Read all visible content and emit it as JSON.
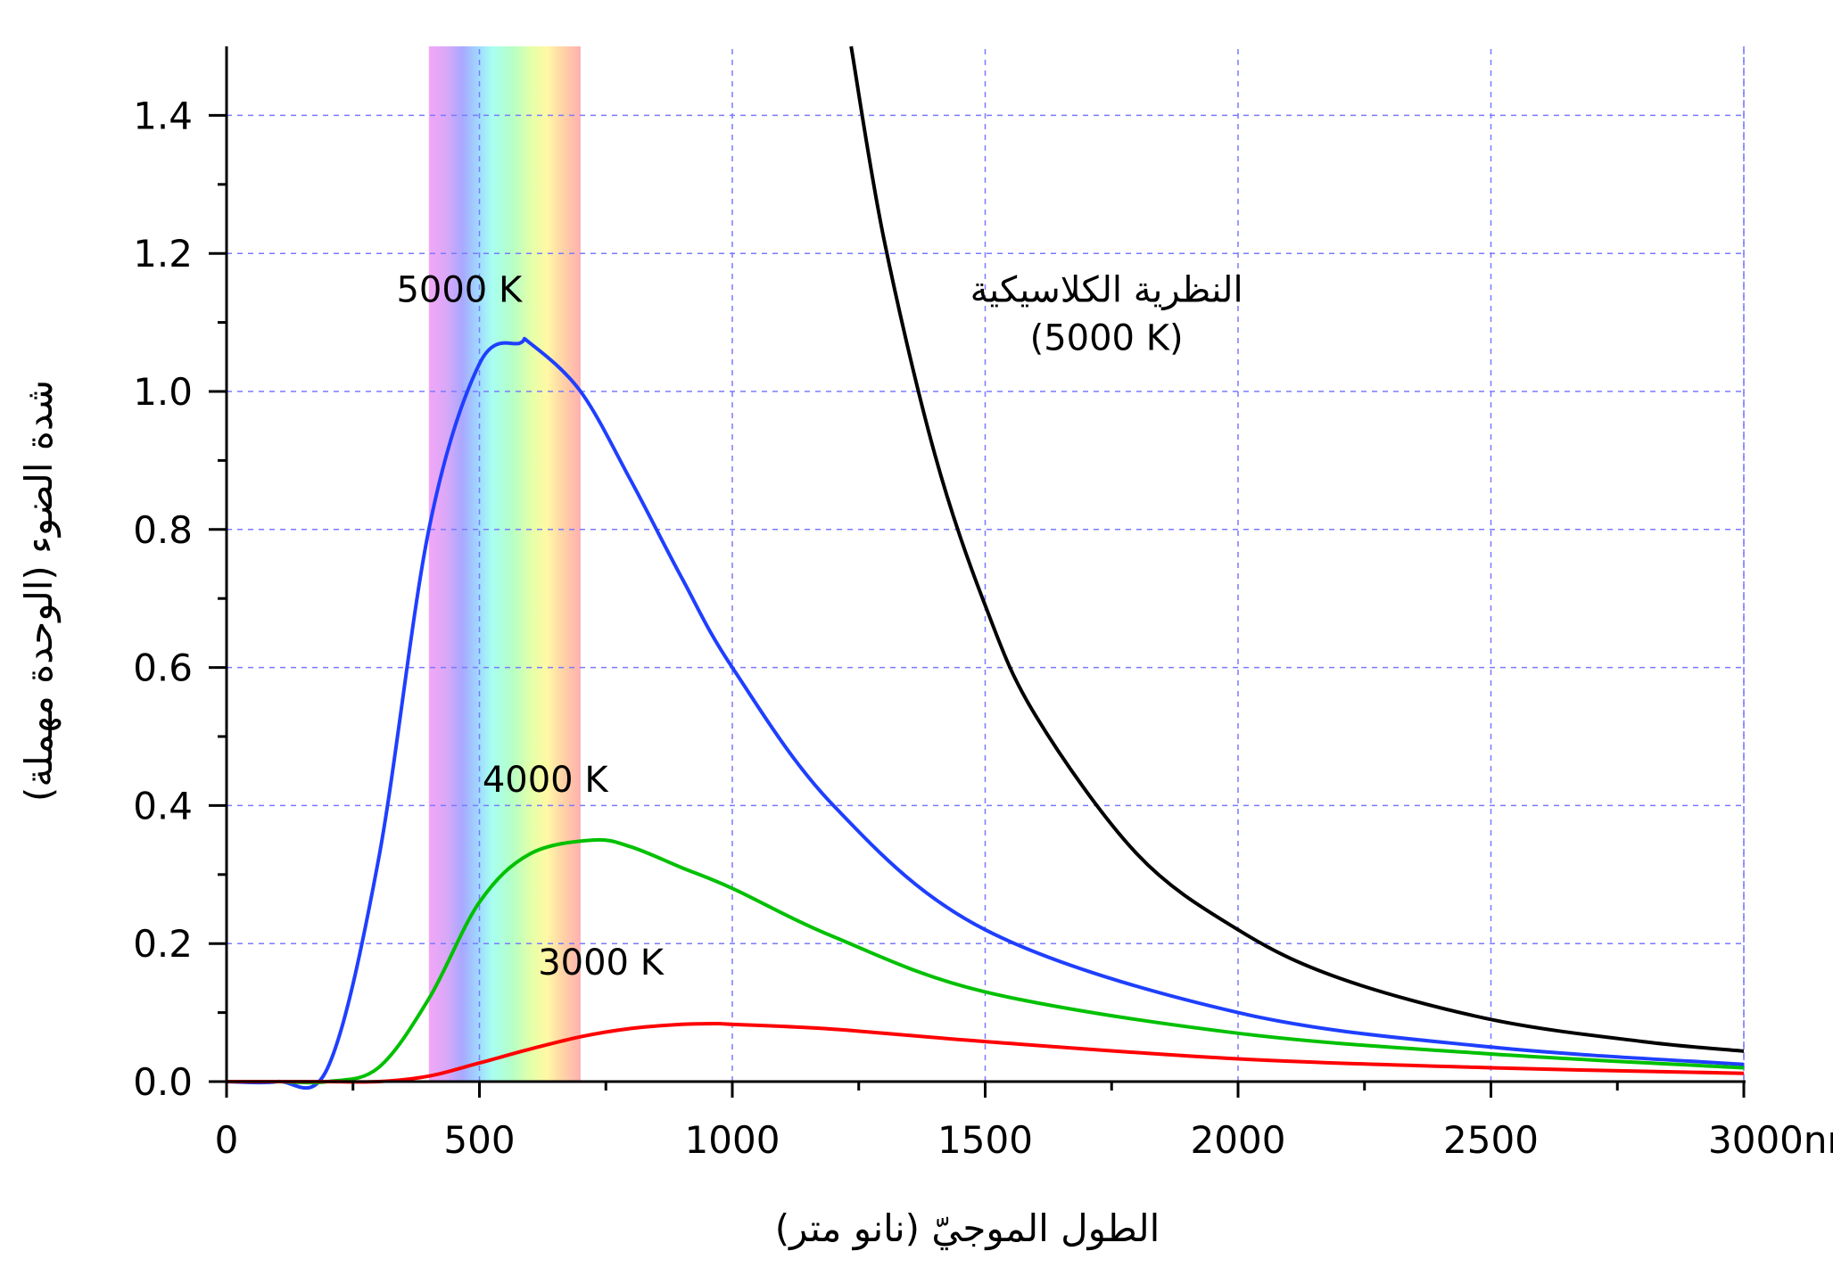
{
  "chart_data": {
    "type": "line",
    "xlabel": "الطول الموجيّ (نانو متر)",
    "ylabel": "شدة الضوء (الوحدة مهملة)",
    "xlim": [
      0,
      3000
    ],
    "ylim": [
      0,
      1.5
    ],
    "x_ticks": [
      "0",
      "500",
      "1000",
      "1500",
      "2000",
      "2500",
      "3000nm"
    ],
    "y_ticks": [
      "0.0",
      "0.2",
      "0.4",
      "0.6",
      "0.8",
      "1.0",
      "1.2",
      "1.4"
    ],
    "grid": true,
    "visible_band": {
      "from_nm": 400,
      "to_nm": 700
    },
    "series": [
      {
        "name": "5000 K",
        "color": "#1f3fff",
        "x": [
          100,
          200,
          300,
          400,
          500,
          580,
          600,
          700,
          800,
          900,
          1000,
          1200,
          1500,
          2000,
          2500,
          3000
        ],
        "y": [
          0.0,
          0.02,
          0.32,
          0.8,
          1.04,
          1.07,
          1.07,
          1.0,
          0.87,
          0.73,
          0.6,
          0.4,
          0.22,
          0.1,
          0.05,
          0.025
        ]
      },
      {
        "name": "4000 K",
        "color": "#00c000",
        "x": [
          100,
          200,
          300,
          400,
          500,
          600,
          725,
          800,
          900,
          1000,
          1200,
          1500,
          2000,
          2500,
          3000
        ],
        "y": [
          0.0,
          0.0,
          0.02,
          0.12,
          0.26,
          0.33,
          0.35,
          0.34,
          0.31,
          0.28,
          0.21,
          0.13,
          0.07,
          0.04,
          0.02
        ]
      },
      {
        "name": "3000 K",
        "color": "#ff0000",
        "x": [
          100,
          200,
          300,
          400,
          500,
          600,
          700,
          800,
          900,
          970,
          1000,
          1200,
          1500,
          2000,
          2500,
          3000
        ],
        "y": [
          0.0,
          0.0,
          0.0,
          0.008,
          0.027,
          0.047,
          0.065,
          0.077,
          0.083,
          0.084,
          0.083,
          0.076,
          0.058,
          0.033,
          0.02,
          0.012
        ]
      },
      {
        "name": "النظرية الكلاسيكية (5000 K)",
        "color": "#000000",
        "x": [
          1235,
          1300,
          1400,
          1500,
          1600,
          1800,
          2000,
          2200,
          2500,
          2800,
          3000
        ],
        "y": [
          1.5,
          1.22,
          0.91,
          0.69,
          0.53,
          0.33,
          0.22,
          0.15,
          0.09,
          0.058,
          0.044
        ]
      }
    ],
    "annotations": [
      {
        "text": "5000 K",
        "x": 460,
        "y": 1.13
      },
      {
        "text": "4000 K",
        "x": 630,
        "y": 0.42
      },
      {
        "text": "3000 K",
        "x": 740,
        "y": 0.155
      },
      {
        "text": "النظرية الكلاسيكية",
        "x": 1740,
        "y": 1.13
      },
      {
        "text": "(5000 K)",
        "x": 1740,
        "y": 1.06
      }
    ]
  }
}
